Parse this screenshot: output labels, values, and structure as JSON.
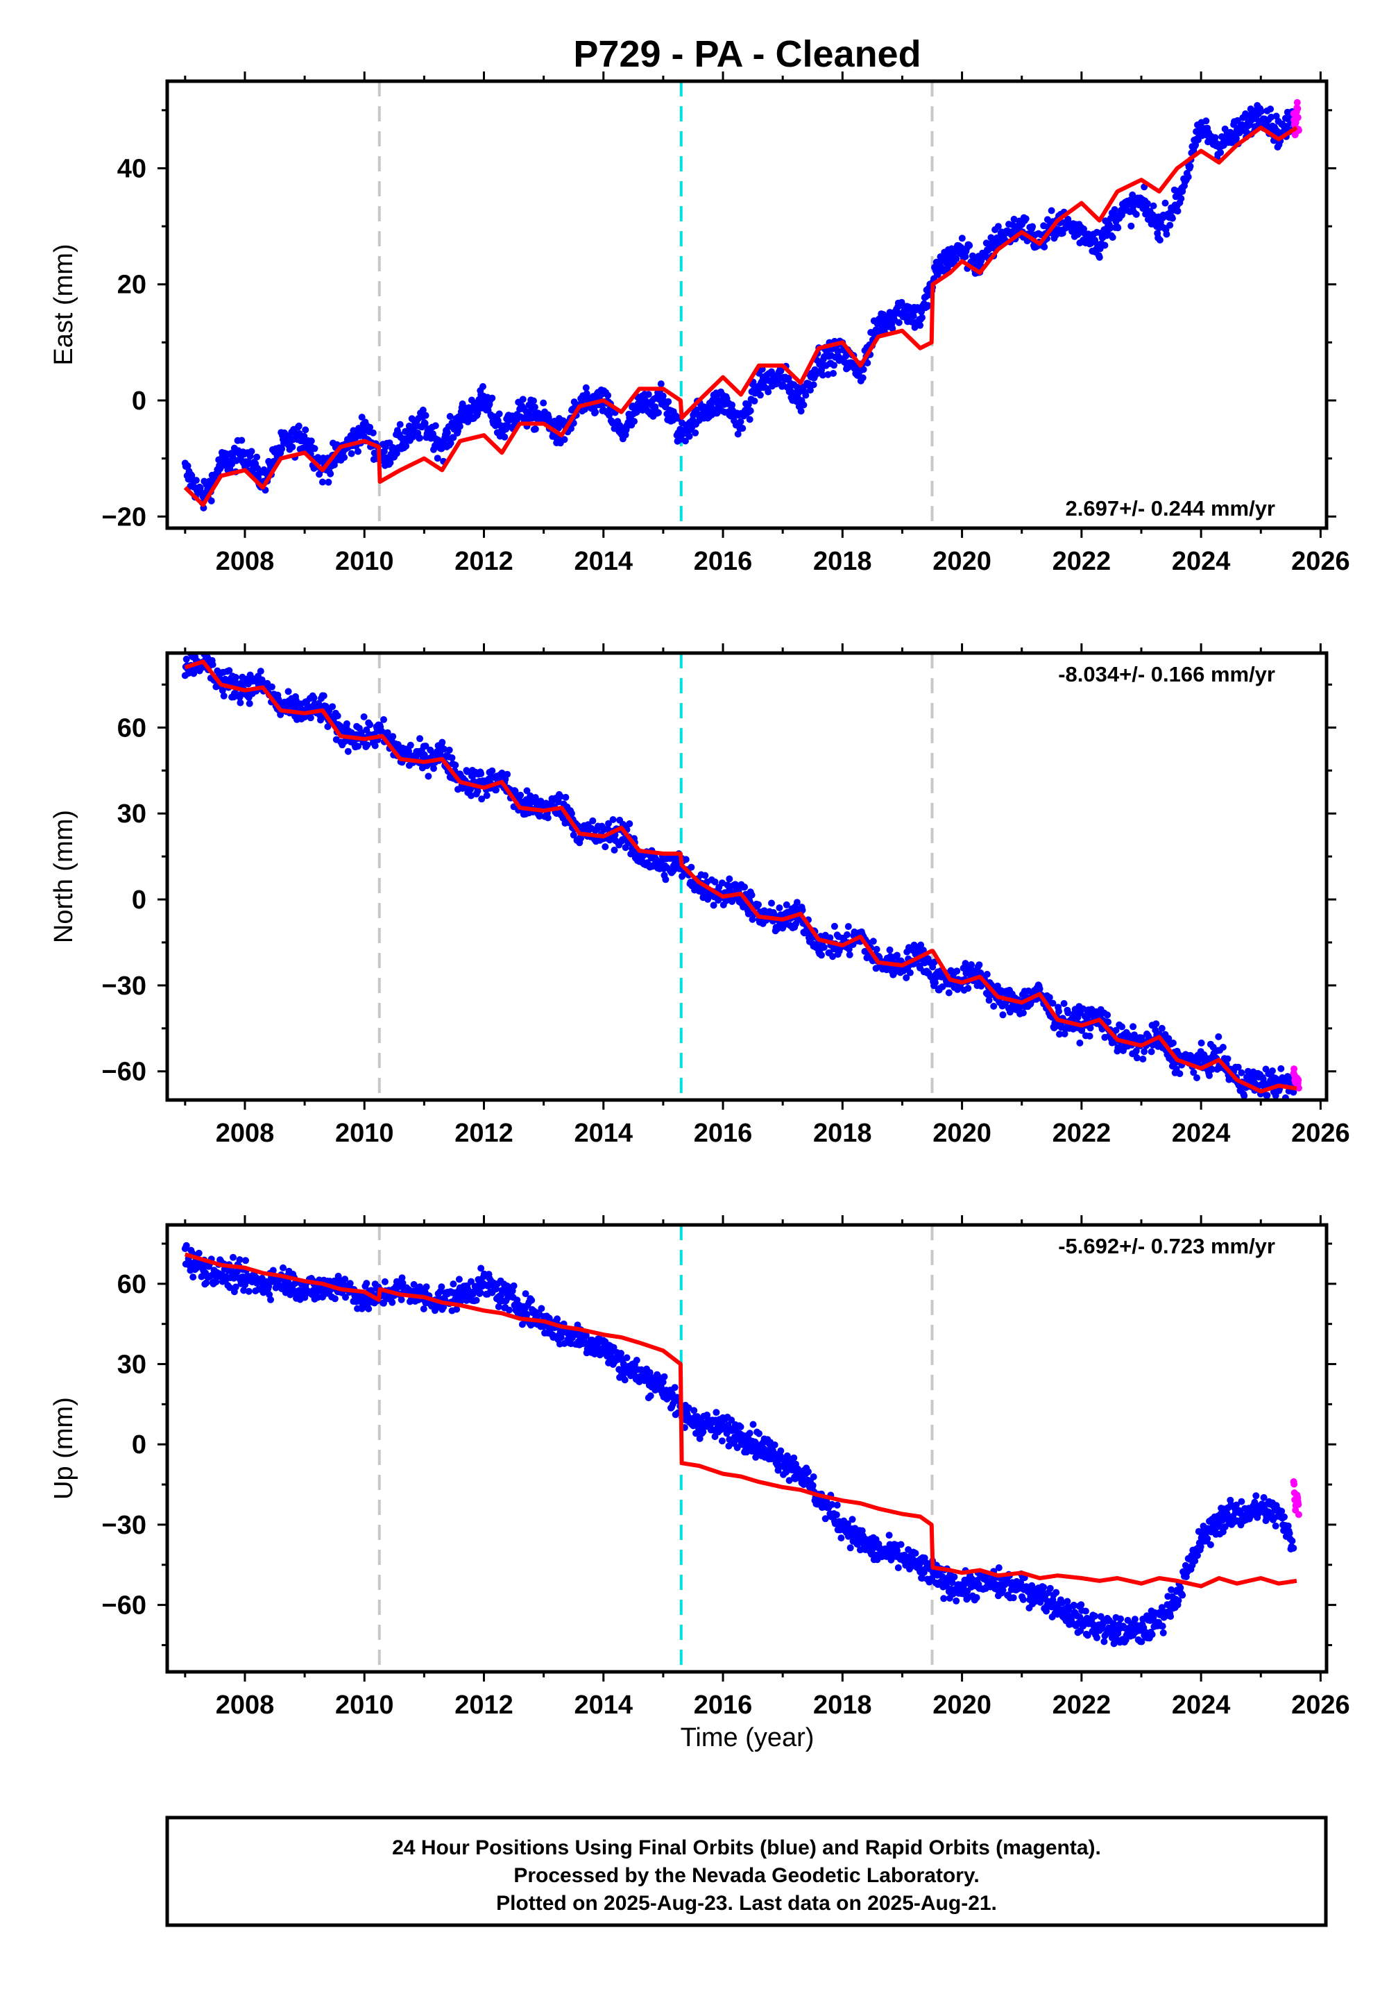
{
  "title": "P729  - PA - Cleaned",
  "colors": {
    "final": "#0000ff",
    "rapid": "#ff00ff",
    "model": "#ff0000",
    "offset_equipment": "#c8c8c8",
    "offset_earthquake": "#00e0e0"
  },
  "footer": {
    "line1": "24 Hour Positions Using Final Orbits (blue) and Rapid Orbits (magenta).",
    "line2": "Processed by the Nevada Geodetic Laboratory.",
    "line3": "Plotted on 2025-Aug-23. Last data on 2025-Aug-21."
  },
  "chart_data": [
    {
      "type": "scatter",
      "panel": "east",
      "ylabel": "East (mm)",
      "xlabel": "",
      "rate_label": "2.697+/- 0.244 mm/yr",
      "rate_position": "bottom-right",
      "xlim": [
        2006.7,
        2026.1
      ],
      "ylim": [
        -22,
        55
      ],
      "x_ticks": [
        2008,
        2010,
        2012,
        2014,
        2016,
        2018,
        2020,
        2022,
        2024,
        2026
      ],
      "y_ticks": [
        -20,
        0,
        20,
        40
      ],
      "offsets": [
        {
          "x": 2010.25,
          "kind": "equipment"
        },
        {
          "x": 2015.3,
          "kind": "earthquake"
        },
        {
          "x": 2019.5,
          "kind": "equipment"
        }
      ],
      "observed_final": {
        "x": [
          2007.0,
          2007.3,
          2007.6,
          2008.0,
          2008.3,
          2008.6,
          2009.0,
          2009.3,
          2009.6,
          2010.0,
          2010.3,
          2010.6,
          2011.0,
          2011.3,
          2011.6,
          2012.0,
          2012.3,
          2012.6,
          2013.0,
          2013.3,
          2013.6,
          2014.0,
          2014.3,
          2014.6,
          2015.0,
          2015.3,
          2015.6,
          2016.0,
          2016.3,
          2016.6,
          2017.0,
          2017.3,
          2017.6,
          2018.0,
          2018.3,
          2018.6,
          2019.0,
          2019.3,
          2019.6,
          2020.0,
          2020.3,
          2020.6,
          2021.0,
          2021.3,
          2021.6,
          2022.0,
          2022.3,
          2022.6,
          2023.0,
          2023.3,
          2023.6,
          2024.0,
          2024.3,
          2024.6,
          2025.0,
          2025.3,
          2025.55
        ],
        "y": [
          -12,
          -17,
          -11,
          -9,
          -14,
          -8,
          -6,
          -12,
          -9,
          -5,
          -10,
          -7,
          -4,
          -8,
          -3,
          0,
          -5,
          -2,
          -3,
          -6,
          -1,
          0,
          -6,
          -1,
          0,
          -6,
          -2,
          0,
          -4,
          3,
          4,
          0,
          7,
          8,
          5,
          13,
          16,
          14,
          23,
          26,
          23,
          28,
          30,
          27,
          31,
          29,
          27,
          32,
          34,
          30,
          34,
          47,
          44,
          46,
          50,
          46,
          48
        ]
      },
      "observed_rapid": {
        "x": [
          2025.55,
          2025.58,
          2025.61,
          2025.64
        ],
        "y": [
          50,
          46,
          52,
          45
        ]
      },
      "model": {
        "x": [
          2007.0,
          2007.3,
          2007.6,
          2008.0,
          2008.3,
          2008.6,
          2009.0,
          2009.3,
          2009.6,
          2010.0,
          2010.24,
          2010.26,
          2010.6,
          2011.0,
          2011.3,
          2011.6,
          2012.0,
          2012.3,
          2012.6,
          2013.0,
          2013.3,
          2013.6,
          2014.0,
          2014.3,
          2014.6,
          2015.0,
          2015.29,
          2015.31,
          2015.6,
          2016.0,
          2016.3,
          2016.6,
          2017.0,
          2017.3,
          2017.6,
          2018.0,
          2018.3,
          2018.6,
          2019.0,
          2019.3,
          2019.49,
          2019.51,
          2019.8,
          2020.0,
          2020.3,
          2020.6,
          2021.0,
          2021.3,
          2021.6,
          2022.0,
          2022.3,
          2022.6,
          2023.0,
          2023.3,
          2023.6,
          2024.0,
          2024.3,
          2024.6,
          2025.0,
          2025.3,
          2025.6
        ],
        "y": [
          -15,
          -18,
          -13,
          -12,
          -15,
          -10,
          -9,
          -12,
          -8,
          -7,
          -8,
          -14,
          -12,
          -10,
          -12,
          -7,
          -6,
          -9,
          -4,
          -4,
          -6,
          -1,
          0,
          -2,
          2,
          2,
          0,
          -3,
          0,
          4,
          1,
          6,
          6,
          3,
          9,
          10,
          6,
          11,
          12,
          9,
          10,
          20,
          22,
          24,
          22,
          26,
          29,
          27,
          31,
          34,
          31,
          36,
          38,
          36,
          40,
          43,
          41,
          44,
          47,
          45,
          47
        ]
      }
    },
    {
      "type": "scatter",
      "panel": "north",
      "ylabel": "North (mm)",
      "xlabel": "",
      "rate_label": "-8.034+/- 0.166 mm/yr",
      "rate_position": "top-right",
      "xlim": [
        2006.7,
        2026.1
      ],
      "ylim": [
        -70,
        86
      ],
      "x_ticks": [
        2008,
        2010,
        2012,
        2014,
        2016,
        2018,
        2020,
        2022,
        2024,
        2026
      ],
      "y_ticks": [
        -60,
        -30,
        0,
        30,
        60
      ],
      "offsets": [
        {
          "x": 2010.25,
          "kind": "equipment"
        },
        {
          "x": 2015.3,
          "kind": "earthquake"
        },
        {
          "x": 2019.5,
          "kind": "equipment"
        }
      ],
      "observed_final": {
        "x": [
          2007.0,
          2007.3,
          2007.6,
          2008.0,
          2008.3,
          2008.6,
          2009.0,
          2009.3,
          2009.6,
          2010.0,
          2010.3,
          2010.6,
          2011.0,
          2011.3,
          2011.6,
          2012.0,
          2012.3,
          2012.6,
          2013.0,
          2013.3,
          2013.6,
          2014.0,
          2014.3,
          2014.6,
          2015.0,
          2015.3,
          2015.6,
          2016.0,
          2016.3,
          2016.6,
          2017.0,
          2017.3,
          2017.6,
          2018.0,
          2018.3,
          2018.6,
          2019.0,
          2019.3,
          2019.6,
          2020.0,
          2020.3,
          2020.6,
          2021.0,
          2021.3,
          2021.6,
          2022.0,
          2022.3,
          2022.6,
          2023.0,
          2023.3,
          2023.6,
          2024.0,
          2024.3,
          2024.6,
          2025.0,
          2025.3,
          2025.55
        ],
        "y": [
          82,
          84,
          76,
          74,
          75,
          67,
          66,
          67,
          58,
          57,
          58,
          51,
          49,
          51,
          42,
          40,
          42,
          33,
          32,
          33,
          24,
          22,
          24,
          15,
          12,
          12,
          5,
          2,
          3,
          -6,
          -7,
          -6,
          -15,
          -16,
          -13,
          -22,
          -23,
          -19,
          -28,
          -28,
          -26,
          -35,
          -36,
          -33,
          -42,
          -43,
          -41,
          -49,
          -51,
          -48,
          -56,
          -57,
          -55,
          -63,
          -64,
          -64,
          -65
        ]
      },
      "observed_rapid": {
        "x": [
          2025.55,
          2025.58,
          2025.61,
          2025.64
        ],
        "y": [
          -60,
          -64,
          -62,
          -66
        ]
      },
      "model": {
        "x": [
          2007.0,
          2007.3,
          2007.6,
          2008.0,
          2008.3,
          2008.6,
          2009.0,
          2009.3,
          2009.6,
          2010.0,
          2010.3,
          2010.6,
          2011.0,
          2011.3,
          2011.6,
          2012.0,
          2012.3,
          2012.6,
          2013.0,
          2013.3,
          2013.6,
          2014.0,
          2014.3,
          2014.6,
          2015.0,
          2015.29,
          2015.31,
          2015.6,
          2016.0,
          2016.3,
          2016.6,
          2017.0,
          2017.3,
          2017.6,
          2018.0,
          2018.3,
          2018.6,
          2019.0,
          2019.3,
          2019.49,
          2019.51,
          2019.8,
          2020.0,
          2020.3,
          2020.6,
          2021.0,
          2021.3,
          2021.6,
          2022.0,
          2022.3,
          2022.6,
          2023.0,
          2023.3,
          2023.6,
          2024.0,
          2024.3,
          2024.6,
          2025.0,
          2025.3,
          2025.6
        ],
        "y": [
          81,
          83,
          75,
          73,
          74,
          66,
          65,
          66,
          57,
          56,
          57,
          49,
          48,
          49,
          41,
          39,
          41,
          32,
          31,
          32,
          23,
          22,
          25,
          17,
          16,
          16,
          12,
          6,
          1,
          2,
          -6,
          -7,
          -5,
          -14,
          -16,
          -13,
          -22,
          -23,
          -20,
          -18,
          -18,
          -28,
          -29,
          -27,
          -34,
          -36,
          -33,
          -42,
          -44,
          -42,
          -49,
          -51,
          -48,
          -56,
          -59,
          -56,
          -63,
          -67,
          -65,
          -66
        ]
      }
    },
    {
      "type": "scatter",
      "panel": "up",
      "ylabel": "Up (mm)",
      "xlabel": "Time (year)",
      "rate_label": "-5.692+/- 0.723 mm/yr",
      "rate_position": "top-right",
      "xlim": [
        2006.7,
        2026.1
      ],
      "ylim": [
        -85,
        82
      ],
      "x_ticks": [
        2008,
        2010,
        2012,
        2014,
        2016,
        2018,
        2020,
        2022,
        2024,
        2026
      ],
      "y_ticks": [
        -60,
        -30,
        0,
        30,
        60
      ],
      "offsets": [
        {
          "x": 2010.25,
          "kind": "equipment"
        },
        {
          "x": 2015.3,
          "kind": "earthquake"
        },
        {
          "x": 2019.5,
          "kind": "equipment"
        }
      ],
      "observed_final": {
        "x": [
          2007.0,
          2007.3,
          2007.6,
          2008.0,
          2008.3,
          2008.6,
          2009.0,
          2009.3,
          2009.6,
          2010.0,
          2010.3,
          2010.6,
          2011.0,
          2011.3,
          2011.6,
          2012.0,
          2012.3,
          2012.6,
          2013.0,
          2013.3,
          2013.6,
          2014.0,
          2014.3,
          2014.6,
          2015.0,
          2015.3,
          2015.6,
          2016.0,
          2016.3,
          2016.6,
          2017.0,
          2017.3,
          2017.6,
          2018.0,
          2018.3,
          2018.6,
          2019.0,
          2019.3,
          2019.6,
          2020.0,
          2020.3,
          2020.6,
          2021.0,
          2021.3,
          2021.6,
          2022.0,
          2022.3,
          2022.6,
          2023.0,
          2023.3,
          2023.6,
          2024.0,
          2024.3,
          2024.6,
          2025.0,
          2025.3,
          2025.55
        ],
        "y": [
          70,
          66,
          64,
          62,
          60,
          62,
          58,
          58,
          60,
          54,
          56,
          58,
          55,
          54,
          56,
          60,
          56,
          52,
          46,
          42,
          40,
          36,
          30,
          26,
          22,
          12,
          8,
          6,
          4,
          0,
          -6,
          -10,
          -20,
          -30,
          -36,
          -40,
          -42,
          -46,
          -50,
          -54,
          -52,
          -52,
          -54,
          -56,
          -60,
          -66,
          -68,
          -70,
          -70,
          -66,
          -56,
          -36,
          -28,
          -26,
          -24,
          -26,
          -38
        ]
      },
      "observed_rapid": {
        "x": [
          2025.55,
          2025.58,
          2025.61,
          2025.64
        ],
        "y": [
          -12,
          -24,
          -18,
          -28
        ]
      },
      "model": {
        "x": [
          2007.0,
          2007.3,
          2007.6,
          2008.0,
          2008.3,
          2008.6,
          2009.0,
          2009.3,
          2009.6,
          2010.0,
          2010.24,
          2010.26,
          2010.6,
          2011.0,
          2011.3,
          2011.6,
          2012.0,
          2012.3,
          2012.6,
          2013.0,
          2013.3,
          2013.6,
          2014.0,
          2014.3,
          2014.6,
          2015.0,
          2015.29,
          2015.31,
          2015.6,
          2016.0,
          2016.3,
          2016.6,
          2017.0,
          2017.3,
          2017.6,
          2018.0,
          2018.3,
          2018.6,
          2019.0,
          2019.3,
          2019.49,
          2019.51,
          2019.8,
          2020.0,
          2020.3,
          2020.6,
          2021.0,
          2021.3,
          2021.6,
          2022.0,
          2022.3,
          2022.6,
          2023.0,
          2023.3,
          2023.6,
          2024.0,
          2024.3,
          2024.6,
          2025.0,
          2025.3,
          2025.6
        ],
        "y": [
          71,
          69,
          67,
          66,
          64,
          63,
          61,
          60,
          58,
          57,
          54,
          58,
          56,
          55,
          53,
          52,
          50,
          49,
          47,
          46,
          44,
          43,
          41,
          40,
          38,
          35,
          30,
          -7,
          -8,
          -11,
          -12,
          -14,
          -16,
          -17,
          -19,
          -21,
          -22,
          -24,
          -26,
          -27,
          -30,
          -46,
          -47,
          -48,
          -47,
          -49,
          -48,
          -50,
          -49,
          -50,
          -51,
          -50,
          -52,
          -50,
          -51,
          -53,
          -50,
          -52,
          -50,
          -52,
          -51
        ]
      }
    }
  ]
}
